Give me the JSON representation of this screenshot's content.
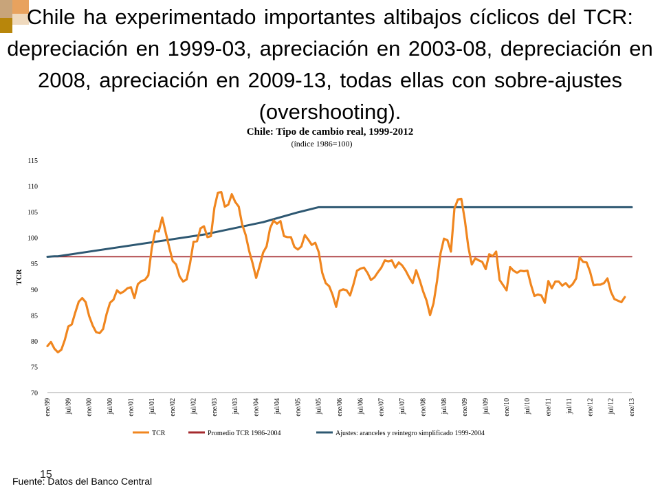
{
  "slide": {
    "title": "Chile ha experimentado importantes altibajos cíclicos del TCR: depreciación en 1999-03,  apreciación en 2003-08, depreciación en 2008, apreciación en 2009-13, todas ellas con sobre-ajustes  (overshooting).",
    "page_number": "15",
    "source": "Fuente: Datos del Banco Central",
    "accent_colors": {
      "tan": "#c8a47a",
      "orange": "#e8a25e",
      "brown": "#b8860b"
    }
  },
  "chart_data": {
    "type": "line",
    "title": "Chile: Tipo de cambio real, 1999-2012",
    "subtitle": "(índice 1986=100)",
    "xlabel": "",
    "ylabel": "TCR",
    "ylim": [
      70,
      115
    ],
    "yticks": [
      70,
      75,
      80,
      85,
      90,
      95,
      100,
      105,
      110,
      115
    ],
    "grid": false,
    "legend_position": "bottom",
    "x_count": 169,
    "x_tick_labels": [
      "ene/99",
      "jul/99",
      "ene/00",
      "jul/00",
      "ene/01",
      "jul/01",
      "ene/02",
      "jul/02",
      "ene/03",
      "jul/03",
      "ene/04",
      "jul/04",
      "ene/05",
      "jul/05",
      "ene/06",
      "jul/06",
      "ene/07",
      "jul/07",
      "ene/08",
      "jul/08",
      "ene/09",
      "jul/09",
      "ene/10",
      "jul/10",
      "ene/11",
      "jul/11",
      "ene/12",
      "jul/12",
      "ene/13"
    ],
    "x_tick_step": 6,
    "series": [
      {
        "name": "TCR",
        "color": "#f0861f",
        "values": [
          79.0,
          79.8,
          78.5,
          77.8,
          78.3,
          80.2,
          82.8,
          83.2,
          85.5,
          87.6,
          88.3,
          87.5,
          84.8,
          83.0,
          81.7,
          81.5,
          82.3,
          85.2,
          87.4,
          88.0,
          89.8,
          89.2,
          89.6,
          90.2,
          90.4,
          88.3,
          91.0,
          91.6,
          91.8,
          92.7,
          98.0,
          101.3,
          101.2,
          103.9,
          101.0,
          98.2,
          95.5,
          94.8,
          92.5,
          91.5,
          91.9,
          95.0,
          99.2,
          99.3,
          101.8,
          102.2,
          100.1,
          100.3,
          105.8,
          108.7,
          108.8,
          106.0,
          106.4,
          108.4,
          106.9,
          106.0,
          102.5,
          100.5,
          97.4,
          95.0,
          92.2,
          94.5,
          97.1,
          98.3,
          101.8,
          103.3,
          102.7,
          103.2,
          100.3,
          100.1,
          100.1,
          98.2,
          97.7,
          98.3,
          100.5,
          99.6,
          98.6,
          99.0,
          97.2,
          93.2,
          91.2,
          90.6,
          88.9,
          86.6,
          89.7,
          90.0,
          89.8,
          88.8,
          91.0,
          93.6,
          94.0,
          94.2,
          93.2,
          91.8,
          92.3,
          93.3,
          94.2,
          95.6,
          95.4,
          95.6,
          94.2,
          95.2,
          94.6,
          93.6,
          92.3,
          91.2,
          93.7,
          91.8,
          89.6,
          87.8,
          85.0,
          87.3,
          91.6,
          96.9,
          99.8,
          99.5,
          97.3,
          105.6,
          107.4,
          107.5,
          103.4,
          98.2,
          94.8,
          96.0,
          95.6,
          95.3,
          93.9,
          96.8,
          96.4,
          97.3,
          91.8,
          90.8,
          89.8,
          94.3,
          93.6,
          93.2,
          93.6,
          93.5,
          93.6,
          90.9,
          88.7,
          89.0,
          88.8,
          87.4,
          91.6,
          90.2,
          91.5,
          91.5,
          90.7,
          91.2,
          90.4,
          91.0,
          92.1,
          96.2,
          95.3,
          95.2,
          93.4,
          90.8,
          90.9,
          90.9,
          91.2,
          92.1,
          89.5,
          88.1,
          87.8,
          87.5,
          88.5
        ],
        "count": 169
      },
      {
        "name": "Promedio TCR 1986-2004",
        "color": "#a42a2e",
        "values": [
          96.3,
          96.3
        ],
        "x": [
          0,
          168
        ]
      },
      {
        "name": "Ajustes: aranceles y reintegro simplificado 1999-2004",
        "color": "#2e5872",
        "values": [
          96.3,
          96.4,
          96.4,
          100.6,
          103.0,
          104.9,
          105.9,
          105.9,
          105.9
        ],
        "x": [
          0,
          2,
          3,
          45,
          62,
          72,
          78,
          100,
          168
        ]
      }
    ]
  }
}
